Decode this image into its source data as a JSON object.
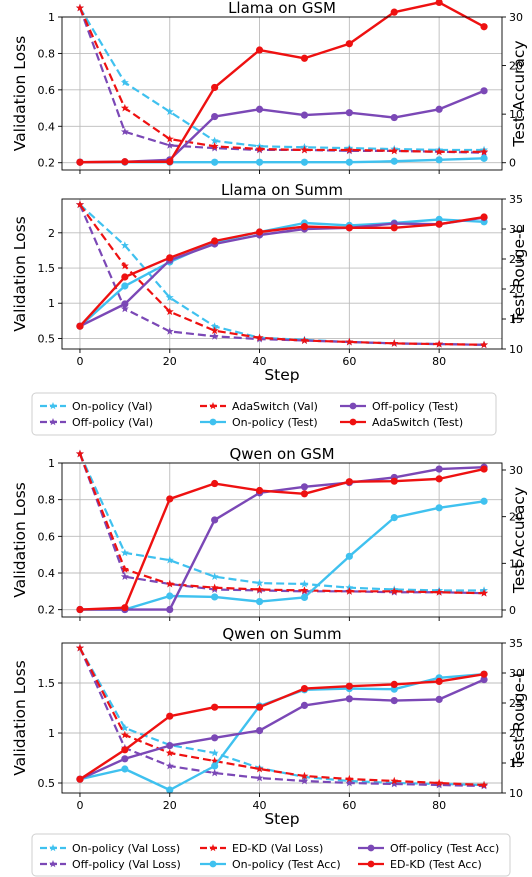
{
  "colors": {
    "on_policy": "#3fc1ef",
    "off_policy": "#7b48b6",
    "adaptive": "#ee1111",
    "grid": "#bcbcbc"
  },
  "legends": [
    {
      "entries": [
        {
          "label": "On-policy (Val)",
          "color": "on_policy",
          "style": "dashed",
          "marker": "star"
        },
        {
          "label": "Off-policy (Val)",
          "color": "off_policy",
          "style": "dashed",
          "marker": "star"
        },
        {
          "label": "AdaSwitch (Val)",
          "color": "adaptive",
          "style": "dashed",
          "marker": "star"
        },
        {
          "label": "On-policy (Test)",
          "color": "on_policy",
          "style": "solid",
          "marker": "circle"
        },
        {
          "label": "Off-policy (Test)",
          "color": "off_policy",
          "style": "solid",
          "marker": "circle"
        },
        {
          "label": "AdaSwitch (Test)",
          "color": "adaptive",
          "style": "solid",
          "marker": "circle"
        }
      ]
    },
    {
      "entries": [
        {
          "label": "On-policy (Val Loss)",
          "color": "on_policy",
          "style": "dashed",
          "marker": "star"
        },
        {
          "label": "Off-policy (Val Loss)",
          "color": "off_policy",
          "style": "dashed",
          "marker": "star"
        },
        {
          "label": "ED-KD (Val Loss)",
          "color": "adaptive",
          "style": "dashed",
          "marker": "star"
        },
        {
          "label": "On-policy (Test Acc)",
          "color": "on_policy",
          "style": "solid",
          "marker": "circle"
        },
        {
          "label": "Off-policy (Test Acc)",
          "color": "off_policy",
          "style": "solid",
          "marker": "circle"
        },
        {
          "label": "ED-KD (Test Acc)",
          "color": "adaptive",
          "style": "solid",
          "marker": "circle"
        }
      ]
    }
  ],
  "chart_data": [
    {
      "type": "line",
      "title": "Llama on GSM",
      "xlabel": "",
      "ylabel": "Validation Loss",
      "y2label": "Test Accuracy",
      "x": [
        0,
        10,
        20,
        30,
        40,
        50,
        60,
        70,
        80,
        90
      ],
      "xlim": [
        -4,
        94
      ],
      "ylim": [
        0.16,
        1.0
      ],
      "y2lim": [
        -1.5,
        30
      ],
      "yticks": [
        0.2,
        0.4,
        0.6,
        0.8,
        1.0
      ],
      "y2ticks": [
        0,
        10,
        20,
        30
      ],
      "xticks": [],
      "grid": true,
      "series": [
        {
          "name": "On-policy (Val)",
          "axis": "left",
          "color": "on_policy",
          "style": "dashed",
          "marker": "star",
          "values": [
            1.05,
            0.64,
            0.48,
            0.32,
            0.29,
            0.285,
            0.28,
            0.275,
            0.27,
            0.27
          ]
        },
        {
          "name": "Off-policy (Val)",
          "axis": "left",
          "color": "off_policy",
          "style": "dashed",
          "marker": "star",
          "values": [
            1.05,
            0.37,
            0.295,
            0.28,
            0.27,
            0.27,
            0.265,
            0.265,
            0.26,
            0.255
          ]
        },
        {
          "name": "AdaSwitch (Val)",
          "axis": "left",
          "color": "adaptive",
          "style": "dashed",
          "marker": "star",
          "values": [
            1.05,
            0.5,
            0.33,
            0.29,
            0.275,
            0.27,
            0.27,
            0.265,
            0.26,
            0.26
          ]
        },
        {
          "name": "On-policy (Test)",
          "axis": "right",
          "color": "on_policy",
          "style": "solid",
          "marker": "circle",
          "values": [
            0.1,
            0.1,
            0.1,
            0.1,
            0.1,
            0.1,
            0.1,
            0.3,
            0.6,
            0.9
          ]
        },
        {
          "name": "Off-policy (Test)",
          "axis": "right",
          "color": "off_policy",
          "style": "solid",
          "marker": "circle",
          "values": [
            0.1,
            0.2,
            0.6,
            9.5,
            11.0,
            9.8,
            10.3,
            9.3,
            11.0,
            14.8
          ]
        },
        {
          "name": "AdaSwitch (Test)",
          "axis": "right",
          "color": "adaptive",
          "style": "solid",
          "marker": "circle",
          "values": [
            0.1,
            0.2,
            0.2,
            15.5,
            23.2,
            21.5,
            24.5,
            31.0,
            33.0,
            28.0
          ]
        }
      ]
    },
    {
      "type": "line",
      "title": "Llama on Summ",
      "xlabel": "Step",
      "ylabel": "Validation Loss",
      "y2label": "Test Rouge-L",
      "x": [
        0,
        10,
        20,
        30,
        40,
        50,
        60,
        70,
        80,
        90
      ],
      "xlim": [
        -4,
        94
      ],
      "ylim": [
        0.35,
        2.48
      ],
      "y2lim": [
        10,
        35
      ],
      "yticks": [
        0.5,
        1.0,
        1.5,
        2.0
      ],
      "y2ticks": [
        10,
        15,
        20,
        25,
        30,
        35
      ],
      "xticks": [
        0,
        20,
        40,
        60,
        80
      ],
      "grid": true,
      "series": [
        {
          "name": "On-policy (Val)",
          "axis": "left",
          "color": "on_policy",
          "style": "dashed",
          "marker": "star",
          "values": [
            2.4,
            1.82,
            1.08,
            0.67,
            0.51,
            0.48,
            0.45,
            0.43,
            0.42,
            0.41
          ]
        },
        {
          "name": "Off-policy (Val)",
          "axis": "left",
          "color": "off_policy",
          "style": "dashed",
          "marker": "star",
          "values": [
            2.4,
            0.92,
            0.6,
            0.53,
            0.49,
            0.47,
            0.45,
            0.43,
            0.42,
            0.41
          ]
        },
        {
          "name": "AdaSwitch (Val)",
          "axis": "left",
          "color": "adaptive",
          "style": "dashed",
          "marker": "star",
          "values": [
            2.4,
            1.53,
            0.88,
            0.61,
            0.51,
            0.47,
            0.45,
            0.43,
            0.42,
            0.41
          ]
        },
        {
          "name": "On-policy (Test)",
          "axis": "right",
          "color": "on_policy",
          "style": "solid",
          "marker": "circle",
          "values": [
            13.8,
            20.5,
            24.5,
            27.8,
            29.5,
            31.0,
            30.6,
            31.0,
            31.6,
            31.2
          ]
        },
        {
          "name": "Off-policy (Test)",
          "axis": "right",
          "color": "off_policy",
          "style": "solid",
          "marker": "circle",
          "values": [
            13.8,
            17.5,
            24.8,
            27.5,
            29.0,
            30.0,
            30.2,
            30.9,
            30.8,
            31.9
          ]
        },
        {
          "name": "AdaSwitch (Test)",
          "axis": "right",
          "color": "adaptive",
          "style": "solid",
          "marker": "circle",
          "values": [
            13.8,
            22.0,
            25.2,
            28.0,
            29.5,
            30.4,
            30.2,
            30.2,
            30.8,
            32.0
          ]
        }
      ]
    },
    {
      "type": "line",
      "title": "Qwen on GSM",
      "xlabel": "",
      "ylabel": "Validation Loss",
      "y2label": "Test Accuracy",
      "x": [
        0,
        10,
        20,
        30,
        40,
        50,
        60,
        70,
        80,
        90
      ],
      "xlim": [
        -4,
        94
      ],
      "ylim": [
        0.16,
        1.0
      ],
      "y2lim": [
        -1.5,
        31.5
      ],
      "yticks": [
        0.2,
        0.4,
        0.6,
        0.8,
        1.0
      ],
      "y2ticks": [
        0,
        10,
        20,
        30
      ],
      "xticks": [],
      "grid": true,
      "series": [
        {
          "name": "On-policy (Val)",
          "axis": "left",
          "color": "on_policy",
          "style": "dashed",
          "marker": "star",
          "values": [
            1.05,
            0.51,
            0.47,
            0.38,
            0.345,
            0.34,
            0.32,
            0.31,
            0.305,
            0.305
          ]
        },
        {
          "name": "Off-policy (Val)",
          "axis": "left",
          "color": "off_policy",
          "style": "dashed",
          "marker": "star",
          "values": [
            1.05,
            0.38,
            0.34,
            0.31,
            0.305,
            0.3,
            0.3,
            0.295,
            0.295,
            0.29
          ]
        },
        {
          "name": "AdaSwitch (Val)",
          "axis": "left",
          "color": "adaptive",
          "style": "dashed",
          "marker": "star",
          "values": [
            1.05,
            0.42,
            0.34,
            0.32,
            0.31,
            0.305,
            0.3,
            0.3,
            0.295,
            0.29
          ]
        },
        {
          "name": "On-policy (Test)",
          "axis": "right",
          "color": "on_policy",
          "style": "solid",
          "marker": "circle",
          "values": [
            0.1,
            0.1,
            3.0,
            2.8,
            1.8,
            2.7,
            11.5,
            19.8,
            21.9,
            23.3
          ]
        },
        {
          "name": "Off-policy (Test)",
          "axis": "right",
          "color": "off_policy",
          "style": "solid",
          "marker": "circle",
          "values": [
            0.1,
            0.1,
            0.1,
            19.3,
            25.1,
            26.4,
            27.3,
            28.4,
            30.2,
            30.6
          ]
        },
        {
          "name": "AdaSwitch (Test)",
          "axis": "right",
          "color": "adaptive",
          "style": "solid",
          "marker": "circle",
          "values": [
            0.1,
            0.5,
            23.8,
            27.1,
            25.6,
            24.9,
            27.5,
            27.6,
            28.1,
            30.2
          ]
        }
      ]
    },
    {
      "type": "line",
      "title": "Qwen on Summ",
      "xlabel": "Step",
      "ylabel": "Validation Loss",
      "y2label": "Test Rouge-L",
      "x": [
        0,
        10,
        20,
        30,
        40,
        50,
        60,
        70,
        80,
        90
      ],
      "xlim": [
        -4,
        94
      ],
      "ylim": [
        0.4,
        1.9
      ],
      "y2lim": [
        10,
        35
      ],
      "yticks": [
        0.5,
        1.0,
        1.5
      ],
      "y2ticks": [
        10,
        15,
        20,
        25,
        30,
        35
      ],
      "xticks": [
        0,
        20,
        40,
        60,
        80
      ],
      "grid": true,
      "series": [
        {
          "name": "On-policy (Val Loss)",
          "axis": "left",
          "color": "on_policy",
          "style": "dashed",
          "marker": "star",
          "values": [
            1.85,
            1.05,
            0.88,
            0.8,
            0.65,
            0.56,
            0.52,
            0.5,
            0.49,
            0.48
          ]
        },
        {
          "name": "Off-policy (Val Loss)",
          "axis": "left",
          "color": "off_policy",
          "style": "dashed",
          "marker": "star",
          "values": [
            1.85,
            0.85,
            0.67,
            0.6,
            0.55,
            0.52,
            0.5,
            0.49,
            0.48,
            0.47
          ]
        },
        {
          "name": "ED-KD (Val Loss)",
          "axis": "left",
          "color": "adaptive",
          "style": "dashed",
          "marker": "star",
          "values": [
            1.85,
            0.98,
            0.8,
            0.72,
            0.64,
            0.57,
            0.54,
            0.52,
            0.5,
            0.48
          ]
        },
        {
          "name": "On-policy (Test Acc)",
          "axis": "right",
          "color": "on_policy",
          "style": "solid",
          "marker": "circle",
          "values": [
            12.3,
            14.0,
            10.5,
            14.5,
            24.5,
            27.2,
            27.4,
            27.3,
            29.2,
            29.8
          ]
        },
        {
          "name": "Off-policy (Test Acc)",
          "axis": "right",
          "color": "off_policy",
          "style": "solid",
          "marker": "circle",
          "values": [
            12.3,
            15.7,
            17.9,
            19.2,
            20.4,
            24.6,
            25.7,
            25.4,
            25.6,
            28.9
          ]
        },
        {
          "name": "ED-KD (Test Acc)",
          "axis": "right",
          "color": "adaptive",
          "style": "solid",
          "marker": "circle",
          "values": [
            12.3,
            17.2,
            22.8,
            24.3,
            24.3,
            27.4,
            27.8,
            28.1,
            28.6,
            29.8
          ]
        }
      ]
    }
  ]
}
